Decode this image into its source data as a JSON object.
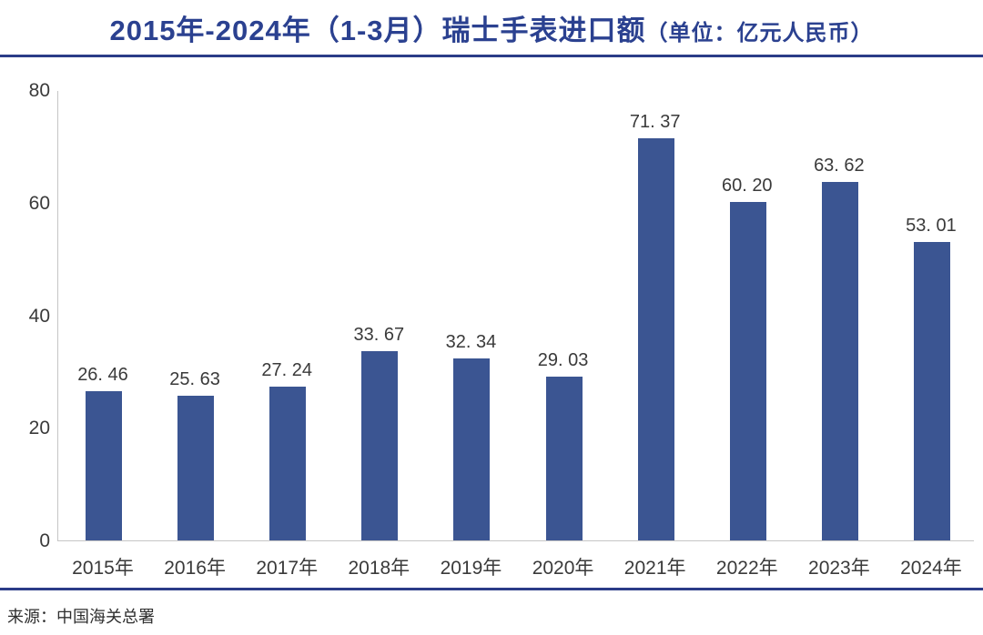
{
  "title": {
    "main": "2015年-2024年（1-3月）瑞士手表进口额",
    "unit": "（单位：亿元人民币）"
  },
  "source": "来源：中国海关总署",
  "colors": {
    "title_text": "#2b4190",
    "divider": "#2b3c88",
    "bar": "#3b5592",
    "axis_line": "#c5c5c5",
    "tick_text": "#3a3a3a"
  },
  "chart_data": {
    "type": "bar",
    "title": "2015年-2024年（1-3月）瑞士手表进口额（单位：亿元人民币）",
    "categories": [
      "2015年",
      "2016年",
      "2017年",
      "2018年",
      "2019年",
      "2020年",
      "2021年",
      "2022年",
      "2023年",
      "2024年"
    ],
    "values": [
      26.46,
      25.63,
      27.24,
      33.67,
      32.34,
      29.03,
      71.37,
      60.2,
      63.62,
      53.01
    ],
    "value_labels": [
      "26. 46",
      "25. 63",
      "27. 24",
      "33. 67",
      "32. 34",
      "29. 03",
      "71. 37",
      "60. 20",
      "63. 62",
      "53. 01"
    ],
    "xlabel": "",
    "ylabel": "",
    "ylim": [
      0,
      80
    ],
    "yticks": [
      0,
      20,
      40,
      60,
      80
    ],
    "grid": false,
    "legend": null
  }
}
